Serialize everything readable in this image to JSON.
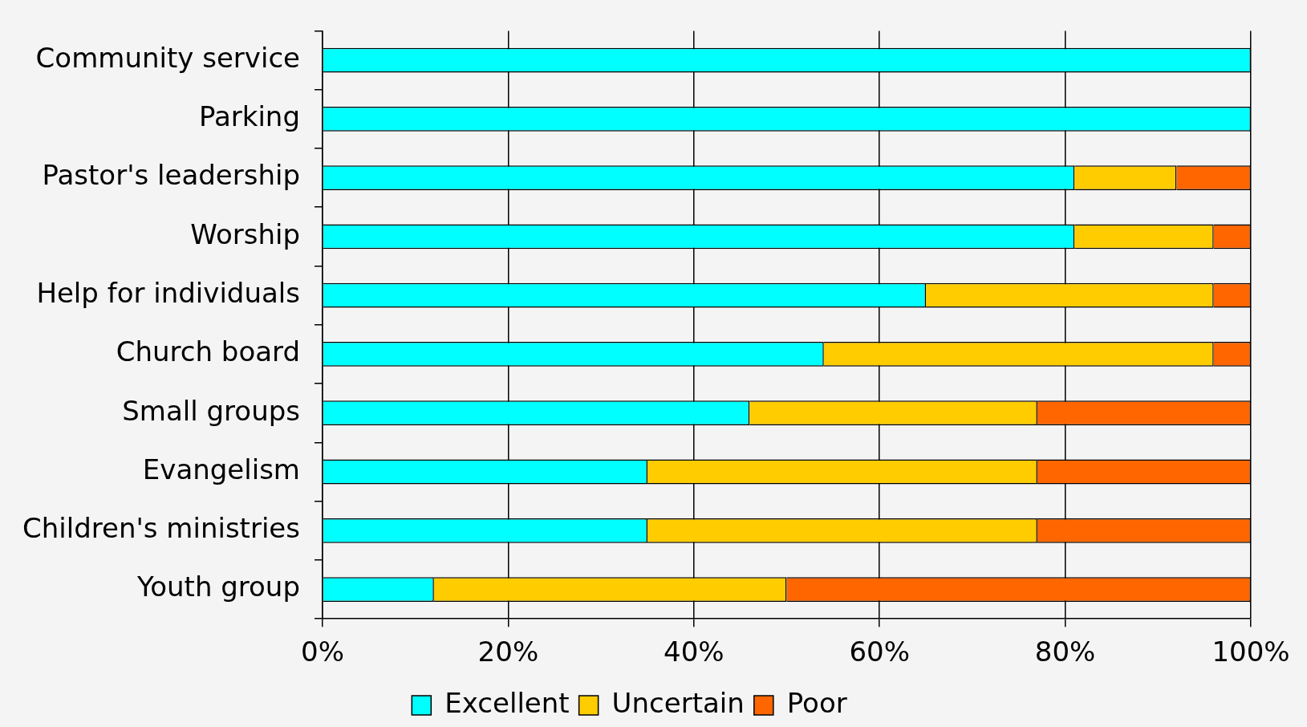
{
  "chart_data": {
    "type": "bar",
    "orientation": "horizontal",
    "stacked": true,
    "categories": [
      "Community service",
      "Parking",
      "Pastor's leadership",
      "Worship",
      "Help for individuals",
      "Church board",
      "Small groups",
      "Evangelism",
      "Children's ministries",
      "Youth group"
    ],
    "series": [
      {
        "name": "Excellent",
        "color": "#00ffff",
        "values": [
          100,
          100,
          81,
          81,
          65,
          54,
          46,
          35,
          35,
          12
        ]
      },
      {
        "name": "Uncertain",
        "color": "#ffcc00",
        "values": [
          0,
          0,
          11,
          15,
          31,
          42,
          31,
          42,
          42,
          38
        ]
      },
      {
        "name": "Poor",
        "color": "#ff6600",
        "values": [
          0,
          0,
          8,
          4,
          4,
          4,
          23,
          23,
          23,
          50
        ]
      }
    ],
    "xlim": [
      0,
      100
    ],
    "xticks": [
      {
        "value": 0,
        "label": "0%"
      },
      {
        "value": 20,
        "label": "20%"
      },
      {
        "value": 40,
        "label": "40%"
      },
      {
        "value": 60,
        "label": "60%"
      },
      {
        "value": 80,
        "label": "80%"
      },
      {
        "value": 100,
        "label": "100%"
      }
    ],
    "grid": "x",
    "legend": "bottom"
  }
}
